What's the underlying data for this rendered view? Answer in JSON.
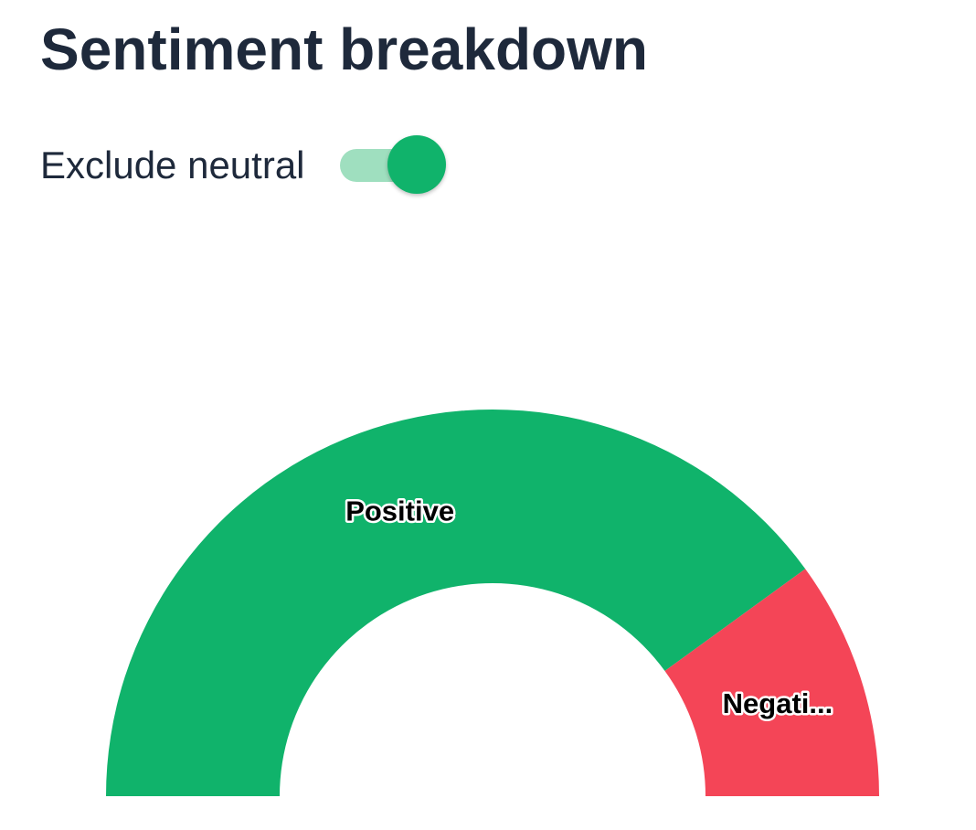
{
  "header": {
    "title": "Sentiment breakdown"
  },
  "controls": {
    "exclude_neutral_label": "Exclude neutral",
    "exclude_neutral_on": true,
    "toggle_thumb_color": "#10b36b",
    "toggle_track_color": "#9fdfbf"
  },
  "chart_data": {
    "type": "pie",
    "style": "semicircle-donut",
    "title": "",
    "slices": [
      {
        "label": "Positive",
        "display_label": "Positive",
        "value": 80,
        "color": "#10b36b"
      },
      {
        "label": "Negative",
        "display_label": "Negati...",
        "value": 20,
        "color": "#f44557"
      }
    ]
  }
}
